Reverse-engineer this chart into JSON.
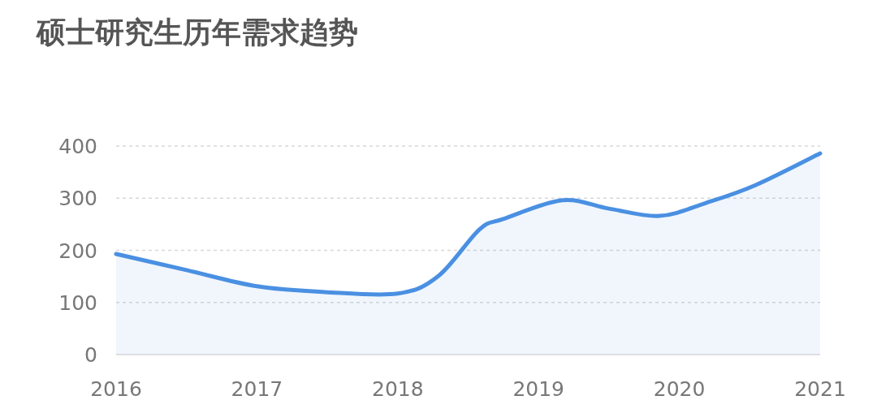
{
  "chart_data": {
    "type": "area",
    "title": "硕士研究生历年需求趋势",
    "x": [
      2016,
      2016.5,
      2017,
      2017.48,
      2018,
      2018.29,
      2018.58,
      2018.75,
      2019.17,
      2019.5,
      2019.86,
      2020.19,
      2020.54,
      2021
    ],
    "series": [
      {
        "color": "#4a90e2",
        "values": [
          193,
          162,
          131,
          120,
          117,
          151,
          240,
          260,
          296,
          280,
          266,
          291,
          325,
          386
        ]
      }
    ],
    "xlim": [
      2016,
      2021
    ],
    "xticks": [
      2016,
      2017,
      2018,
      2019,
      2020,
      2021
    ],
    "ylim": [
      0,
      400
    ],
    "yticks": [
      0,
      100,
      200,
      300,
      400
    ],
    "grid": "y",
    "marker": "none",
    "line_style": "solid"
  }
}
